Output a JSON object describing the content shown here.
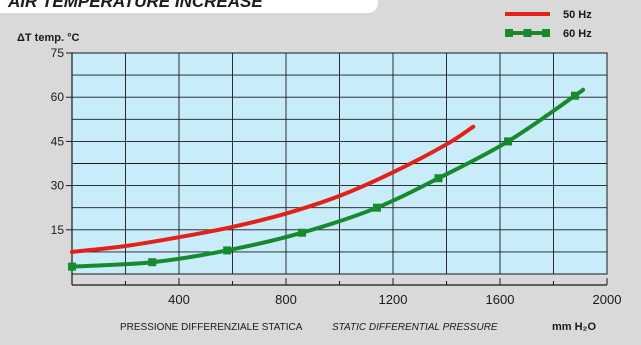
{
  "header": {
    "title": "AIR TEMPERATURE INCREASE"
  },
  "colors": {
    "background": "#d9d9d9",
    "plot_fill": "#c8ecfa",
    "series_50hz": "#e32119",
    "series_60hz": "#168a2c"
  },
  "chart_data": {
    "type": "line",
    "title": "AIR TEMPERATURE INCREASE",
    "ylabel": "ΔT  temp. °C",
    "xlabel": "PRESSIONE DIFFERENZIALE STATICA",
    "xlabel_italic": "STATIC DIFFERENTIAL PRESSURE",
    "xunit": "mm H₂O",
    "xlim": [
      0,
      2000
    ],
    "ylim": [
      0,
      75
    ],
    "x_ticks": [
      "400",
      "800",
      "1200",
      "1600",
      "2000"
    ],
    "y_ticks": [
      "15",
      "30",
      "45",
      "60",
      "75"
    ],
    "grid": true,
    "legend_position": "top-right",
    "series": [
      {
        "name": "50 Hz",
        "x": [
          0,
          200,
          400,
          600,
          800,
          1000,
          1200,
          1400,
          1500
        ],
        "values": [
          7.5,
          9.5,
          12.5,
          16,
          20.5,
          26.5,
          34.5,
          44,
          50
        ]
      },
      {
        "name": "60 Hz",
        "x": [
          0,
          300,
          580,
          860,
          1140,
          1370,
          1630,
          1880,
          1910
        ],
        "values": [
          2.5,
          4,
          8,
          14,
          22.5,
          32.5,
          45,
          60.5,
          62.5
        ],
        "markers": [
          true,
          true,
          true,
          true,
          true,
          true,
          true,
          true,
          false
        ]
      }
    ]
  }
}
